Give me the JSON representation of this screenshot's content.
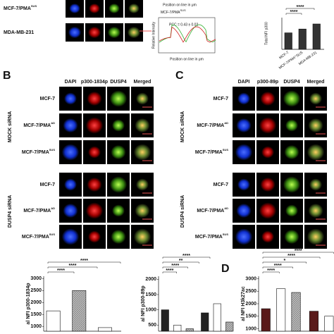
{
  "top": {
    "rows": [
      {
        "main": "MCF-7/PMA",
        "sup": "SUS"
      },
      {
        "main": "MDA-MB-231"
      }
    ],
    "profile": {
      "title": {
        "main": "MCF-7/PMA",
        "sup": "SUS"
      },
      "pcc": "PCC = 0.43 ± 0.02",
      "ylabel": "Relative Intensity",
      "xlabel": "Position on line in μm"
    },
    "xlabel_top": "Position on line in μm",
    "chart": {
      "type": "bar",
      "ylabel": "Total NFI p300",
      "categories": [
        "MCF-7",
        "MCF-7/PMA^SUS",
        "MDA-MB-231"
      ],
      "values": [
        1300,
        1600,
        2000
      ],
      "ylim": [
        0,
        2500
      ],
      "sig": [
        "****",
        "****"
      ]
    }
  },
  "panels": [
    {
      "letter": "B",
      "headers": [
        "DAPI",
        "p300-1834p",
        "DUSP4",
        "Merged"
      ]
    },
    {
      "letter": "C",
      "headers": [
        "DAPI",
        "p300-89p",
        "DUSP4",
        "Merged"
      ]
    }
  ],
  "groups": [
    "MOCK siRNA",
    "DUSP4 siRNA"
  ],
  "rows": [
    {
      "main": "MCF-7"
    },
    {
      "main": "MCF-7/PMA",
      "sup": "AD"
    },
    {
      "main": "MCF-7/PMA",
      "sup": "SUS"
    },
    {
      "main": "MCF-7"
    },
    {
      "main": "MCF-7/PMA",
      "sup": "AD"
    },
    {
      "main": "MCF-7/PMA",
      "sup": "SUS"
    }
  ],
  "bottom_letter": "D",
  "charts": [
    {
      "type": "bar",
      "ylabel": "al NFI p300-1834p",
      "ylim": [
        800,
        3100
      ],
      "yticks": [
        1000,
        1500,
        2000,
        2500,
        3000
      ],
      "values": [
        1650,
        2500,
        950
      ],
      "colors": [
        "#ffffff",
        "#bbbbbb",
        "#ffffff"
      ],
      "sig": [
        "****",
        "****",
        "****"
      ]
    },
    {
      "type": "bar",
      "ylabel": "al NFI p300-89p",
      "ylim": [
        300,
        2100
      ],
      "yticks": [
        500,
        1000,
        1500,
        2000
      ],
      "values": [
        1000,
        500,
        380,
        900,
        1200,
        600
      ],
      "colors": [
        "#222222",
        "#ffffff",
        "#bbbbbb",
        "#222222",
        "#ffffff",
        "#bbbbbb"
      ],
      "sig": [
        "****",
        "****",
        "**",
        "****"
      ]
    },
    {
      "type": "bar",
      "ylabel": "al NFI H3k27ac",
      "ylim": [
        900,
        3100
      ],
      "yticks": [
        1000,
        1500,
        2000,
        2500,
        3000
      ],
      "values": [
        1800,
        2600,
        2450,
        1700,
        1500
      ],
      "colors": [
        "#5a1a1a",
        "#ffffff",
        "#bbbbbb",
        "#5a1a1a",
        "#ffffff"
      ],
      "sig": [
        "****",
        "****",
        "*",
        "****",
        "****"
      ]
    }
  ]
}
